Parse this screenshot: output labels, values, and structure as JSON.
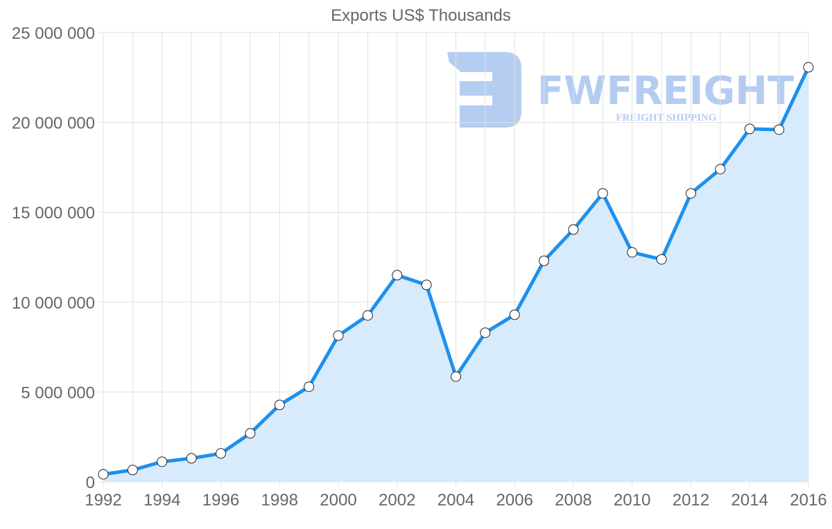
{
  "chart_data": {
    "type": "line",
    "title": "Exports US$ Thousands",
    "xlabel": "",
    "ylabel": "",
    "x": [
      1992,
      1993,
      1994,
      1995,
      1996,
      1997,
      1998,
      1999,
      2000,
      2001,
      2002,
      2003,
      2004,
      2005,
      2006,
      2007,
      2008,
      2009,
      2010,
      2011,
      2012,
      2013,
      2014,
      2015,
      2016
    ],
    "series": [
      {
        "name": "Exports US$ Thousands",
        "values": [
          420000,
          660000,
          1120000,
          1310000,
          1580000,
          2700000,
          4280000,
          5290000,
          8140000,
          9260000,
          11500000,
          10960000,
          5860000,
          8300000,
          9300000,
          12300000,
          14040000,
          16050000,
          12770000,
          12380000,
          16050000,
          17400000,
          19640000,
          19600000,
          23070000
        ],
        "color": "#1e90ee",
        "fill": "#d6eafc",
        "marker": "circle-white"
      }
    ],
    "ylim": [
      0,
      25000000
    ],
    "xlim": [
      1992,
      2016
    ],
    "y_ticks": [
      0,
      5000000,
      10000000,
      15000000,
      20000000,
      25000000
    ],
    "y_tick_labels": [
      "0",
      "5 000 000",
      "10 000 000",
      "15 000 000",
      "20 000 000",
      "25 000 000"
    ],
    "x_ticks": [
      1992,
      1994,
      1996,
      1998,
      2000,
      2002,
      2004,
      2006,
      2008,
      2010,
      2012,
      2014,
      2016
    ],
    "x_tick_labels": [
      "1992",
      "1994",
      "1996",
      "1998",
      "2000",
      "2002",
      "2004",
      "2006",
      "2008",
      "2010",
      "2012",
      "2014",
      "2016"
    ],
    "grid": true,
    "legend": null
  },
  "watermark": {
    "brand": "FWFREIGHT",
    "tagline": "FREIGHT SHIPPING",
    "color": "#a9c4f0"
  },
  "colors": {
    "line": "#1e90ee",
    "area": "#d6eafc",
    "grid": "#e1e1e1",
    "text": "#666666"
  }
}
